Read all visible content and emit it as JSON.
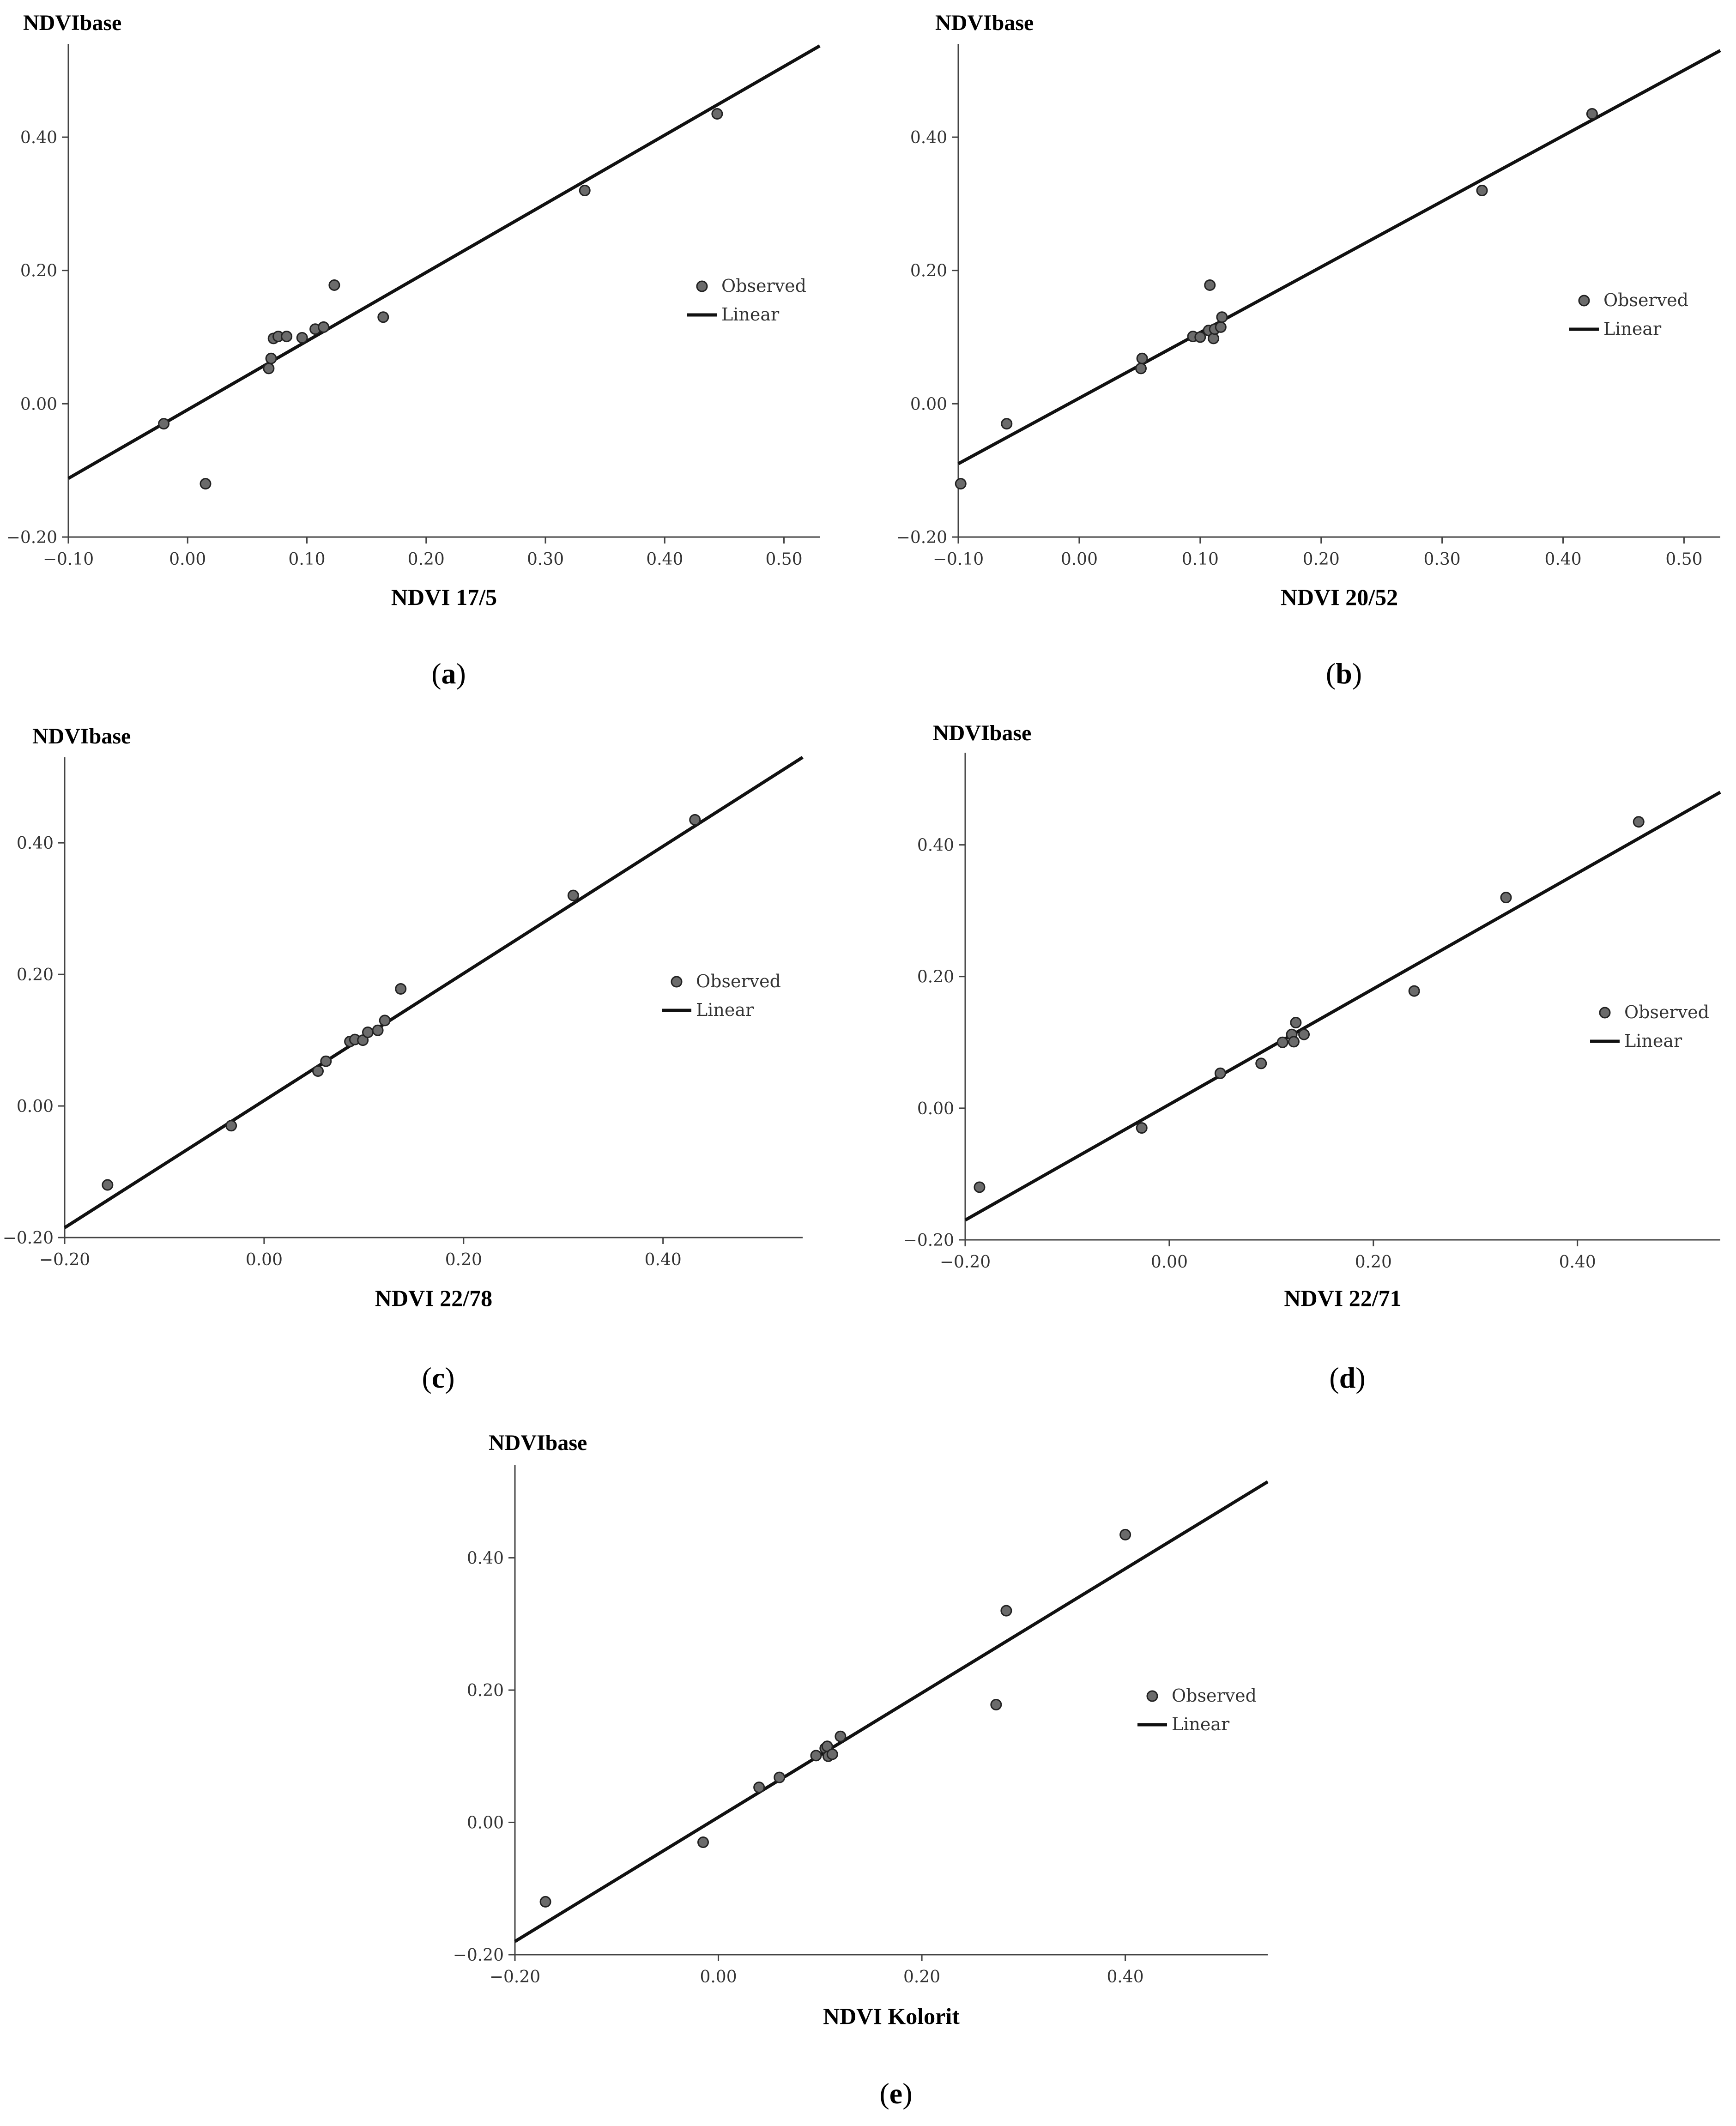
{
  "figure": {
    "colors": {
      "point_fill": "#6b6b6b",
      "point_stroke": "#222222",
      "line": "#111111",
      "axis": "#444444"
    }
  },
  "chart_data": [
    {
      "type": "scatter",
      "panel": "(a)",
      "caption_letter": "a",
      "xlabel": "NDVI 17/5",
      "ylabel": "NDVIbase",
      "xlim": [
        -0.1,
        0.53
      ],
      "ylim": [
        -0.2,
        0.54
      ],
      "xticks": [
        -0.1,
        0.0,
        0.1,
        0.2,
        0.3,
        0.4,
        0.5
      ],
      "yticks": [
        -0.2,
        0.0,
        0.2,
        0.4
      ],
      "xtick_labels": [
        "−0.10",
        "0.00",
        "0.10",
        "0.20",
        "0.30",
        "0.40",
        "0.50"
      ],
      "ytick_labels": [
        "−0.20",
        "0.00",
        "0.20",
        "0.40"
      ],
      "legend": {
        "observed": "Observed",
        "linear": "Linear",
        "placement": "center-right"
      },
      "points": [
        [
          -0.02,
          -0.03
        ],
        [
          0.015,
          -0.12
        ],
        [
          0.068,
          0.053
        ],
        [
          0.07,
          0.068
        ],
        [
          0.072,
          0.098
        ],
        [
          0.076,
          0.101
        ],
        [
          0.083,
          0.101
        ],
        [
          0.096,
          0.099
        ],
        [
          0.107,
          0.112
        ],
        [
          0.114,
          0.115
        ],
        [
          0.123,
          0.178
        ],
        [
          0.164,
          0.13
        ],
        [
          0.333,
          0.32
        ],
        [
          0.444,
          0.435
        ]
      ],
      "fit_line": [
        [
          -0.1,
          -0.112
        ],
        [
          0.53,
          0.537
        ]
      ]
    },
    {
      "type": "scatter",
      "panel": "(b)",
      "caption_letter": "b",
      "xlabel": "NDVI 20/52",
      "ylabel": "NDVIbase",
      "xlim": [
        -0.1,
        0.53
      ],
      "ylim": [
        -0.2,
        0.54
      ],
      "xticks": [
        -0.1,
        0.0,
        0.1,
        0.2,
        0.3,
        0.4,
        0.5
      ],
      "yticks": [
        -0.2,
        0.0,
        0.2,
        0.4
      ],
      "xtick_labels": [
        "−0.10",
        "0.00",
        "0.10",
        "0.20",
        "0.30",
        "0.40",
        "0.50"
      ],
      "ytick_labels": [
        "−0.20",
        "0.00",
        "0.20",
        "0.40"
      ],
      "legend": {
        "observed": "Observed",
        "linear": "Linear",
        "placement": "center-right"
      },
      "points": [
        [
          -0.098,
          -0.12
        ],
        [
          -0.06,
          -0.03
        ],
        [
          0.051,
          0.053
        ],
        [
          0.052,
          0.068
        ],
        [
          0.094,
          0.101
        ],
        [
          0.1,
          0.1
        ],
        [
          0.107,
          0.11
        ],
        [
          0.108,
          0.178
        ],
        [
          0.111,
          0.098
        ],
        [
          0.112,
          0.112
        ],
        [
          0.117,
          0.115
        ],
        [
          0.118,
          0.13
        ],
        [
          0.333,
          0.32
        ],
        [
          0.424,
          0.435
        ]
      ],
      "fit_line": [
        [
          -0.1,
          -0.09
        ],
        [
          0.53,
          0.53
        ]
      ]
    },
    {
      "type": "scatter",
      "panel": "(c)",
      "caption_letter": "c",
      "xlabel": "NDVI 22/78",
      "ylabel": "NDVIbase",
      "xlim": [
        -0.2,
        0.54
      ],
      "ylim": [
        -0.2,
        0.53
      ],
      "xticks": [
        -0.2,
        0.0,
        0.2,
        0.4
      ],
      "yticks": [
        -0.2,
        0.0,
        0.2,
        0.4
      ],
      "xtick_labels": [
        "−0.20",
        "0.00",
        "0.20",
        "0.40"
      ],
      "ytick_labels": [
        "−0.20",
        "0.00",
        "0.20",
        "0.40"
      ],
      "legend": {
        "observed": "Observed",
        "linear": "Linear",
        "placement": "center-right"
      },
      "points": [
        [
          -0.157,
          -0.12
        ],
        [
          -0.033,
          -0.03
        ],
        [
          0.054,
          0.053
        ],
        [
          0.062,
          0.068
        ],
        [
          0.086,
          0.098
        ],
        [
          0.091,
          0.101
        ],
        [
          0.099,
          0.1
        ],
        [
          0.104,
          0.112
        ],
        [
          0.114,
          0.115
        ],
        [
          0.121,
          0.13
        ],
        [
          0.137,
          0.178
        ],
        [
          0.31,
          0.32
        ],
        [
          0.432,
          0.435
        ]
      ],
      "fit_line": [
        [
          -0.2,
          -0.185
        ],
        [
          0.54,
          0.53
        ]
      ]
    },
    {
      "type": "scatter",
      "panel": "(d)",
      "caption_letter": "d",
      "xlabel": "NDVI 22/71",
      "ylabel": "NDVIbase",
      "xlim": [
        -0.2,
        0.54
      ],
      "ylim": [
        -0.2,
        0.54
      ],
      "xticks": [
        -0.2,
        0.0,
        0.2,
        0.4
      ],
      "yticks": [
        -0.2,
        0.0,
        0.2,
        0.4
      ],
      "xtick_labels": [
        "−0.20",
        "0.00",
        "0.20",
        "0.40"
      ],
      "ytick_labels": [
        "−0.20",
        "0.00",
        "0.20",
        "0.40"
      ],
      "legend": {
        "observed": "Observed",
        "linear": "Linear",
        "placement": "center-right"
      },
      "points": [
        [
          -0.186,
          -0.12
        ],
        [
          -0.027,
          -0.03
        ],
        [
          0.05,
          0.053
        ],
        [
          0.09,
          0.068
        ],
        [
          0.111,
          0.1
        ],
        [
          0.12,
          0.112
        ],
        [
          0.122,
          0.101
        ],
        [
          0.124,
          0.13
        ],
        [
          0.132,
          0.112
        ],
        [
          0.24,
          0.178
        ],
        [
          0.33,
          0.32
        ],
        [
          0.46,
          0.435
        ]
      ],
      "fit_line": [
        [
          -0.2,
          -0.17
        ],
        [
          0.54,
          0.48
        ]
      ]
    },
    {
      "type": "scatter",
      "panel": "(e)",
      "caption_letter": "e",
      "xlabel": "NDVI Kolorit",
      "ylabel": "NDVIbase",
      "xlim": [
        -0.2,
        0.54
      ],
      "ylim": [
        -0.2,
        0.54
      ],
      "xticks": [
        -0.2,
        0.0,
        0.2,
        0.4
      ],
      "yticks": [
        -0.2,
        0.0,
        0.2,
        0.4
      ],
      "xtick_labels": [
        "−0.20",
        "0.00",
        "0.20",
        "0.40"
      ],
      "ytick_labels": [
        "−0.20",
        "0.00",
        "0.20",
        "0.40"
      ],
      "legend": {
        "observed": "Observed",
        "linear": "Linear",
        "placement": "center-right"
      },
      "points": [
        [
          -0.17,
          -0.12
        ],
        [
          -0.015,
          -0.03
        ],
        [
          0.04,
          0.053
        ],
        [
          0.06,
          0.068
        ],
        [
          0.096,
          0.101
        ],
        [
          0.105,
          0.112
        ],
        [
          0.107,
          0.115
        ],
        [
          0.108,
          0.1
        ],
        [
          0.112,
          0.103
        ],
        [
          0.12,
          0.13
        ],
        [
          0.273,
          0.178
        ],
        [
          0.283,
          0.32
        ],
        [
          0.4,
          0.435
        ]
      ],
      "fit_line": [
        [
          -0.2,
          -0.18
        ],
        [
          0.54,
          0.515
        ]
      ]
    }
  ]
}
